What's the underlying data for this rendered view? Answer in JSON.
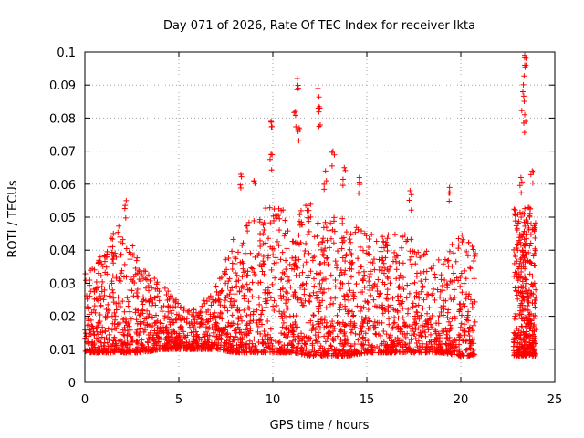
{
  "chart_data": {
    "type": "scatter",
    "title": "Day 071 of 2026, Rate Of TEC Index for receiver lkta",
    "xlabel": "GPS time / hours",
    "ylabel": "ROTI / TECUs",
    "xlim": [
      0,
      25
    ],
    "ylim": [
      0,
      0.1
    ],
    "x_ticks": [
      0,
      5,
      10,
      15,
      20,
      25
    ],
    "x_tick_labels": [
      "0",
      "5",
      "10",
      "15",
      "20",
      "25"
    ],
    "y_ticks": [
      0,
      0.01,
      0.02,
      0.03,
      0.04,
      0.05,
      0.06,
      0.07,
      0.08,
      0.09,
      0.1
    ],
    "y_tick_labels": [
      "0",
      "0.01",
      "0.02",
      "0.03",
      "0.04",
      "0.05",
      "0.06",
      "0.07",
      "0.08",
      "0.09",
      "0.1"
    ],
    "grid": true,
    "marker": "+",
    "color": "#ff0000",
    "series": [
      {
        "name": "ROTI",
        "envelope_hours": [
          0,
          1,
          2,
          3,
          4,
          5,
          6,
          7,
          8,
          9,
          10,
          11,
          12,
          13,
          14,
          15,
          16,
          17,
          18,
          19,
          20,
          20.8
        ],
        "envelope_upper": [
          0.035,
          0.04,
          0.05,
          0.035,
          0.03,
          0.025,
          0.022,
          0.03,
          0.045,
          0.05,
          0.055,
          0.05,
          0.055,
          0.05,
          0.05,
          0.045,
          0.045,
          0.045,
          0.04,
          0.04,
          0.045,
          0.04
        ],
        "envelope_lower": [
          0.005,
          0.005,
          0.005,
          0.005,
          0.006,
          0.006,
          0.006,
          0.006,
          0.005,
          0.005,
          0.005,
          0.005,
          0.004,
          0.004,
          0.004,
          0.005,
          0.005,
          0.005,
          0.005,
          0.005,
          0.004,
          0.004
        ],
        "segment2_hours": [
          22.8,
          24.0
        ],
        "segment2_upper": 0.05,
        "segment2_lower": 0.005,
        "peaks": [
          {
            "x": 2.2,
            "y": 0.055
          },
          {
            "x": 8.3,
            "y": 0.063
          },
          {
            "x": 9.0,
            "y": 0.061
          },
          {
            "x": 9.9,
            "y": 0.079
          },
          {
            "x": 9.9,
            "y": 0.069
          },
          {
            "x": 11.3,
            "y": 0.092
          },
          {
            "x": 11.2,
            "y": 0.082
          },
          {
            "x": 11.4,
            "y": 0.077
          },
          {
            "x": 12.4,
            "y": 0.089
          },
          {
            "x": 12.5,
            "y": 0.083
          },
          {
            "x": 12.8,
            "y": 0.064
          },
          {
            "x": 13.2,
            "y": 0.07
          },
          {
            "x": 13.8,
            "y": 0.065
          },
          {
            "x": 14.6,
            "y": 0.062
          },
          {
            "x": 17.3,
            "y": 0.058
          },
          {
            "x": 19.4,
            "y": 0.059
          },
          {
            "x": 23.4,
            "y": 0.099
          },
          {
            "x": 23.4,
            "y": 0.096
          },
          {
            "x": 23.3,
            "y": 0.088
          },
          {
            "x": 23.4,
            "y": 0.081
          },
          {
            "x": 23.2,
            "y": 0.062
          },
          {
            "x": 23.8,
            "y": 0.064
          }
        ]
      }
    ]
  }
}
